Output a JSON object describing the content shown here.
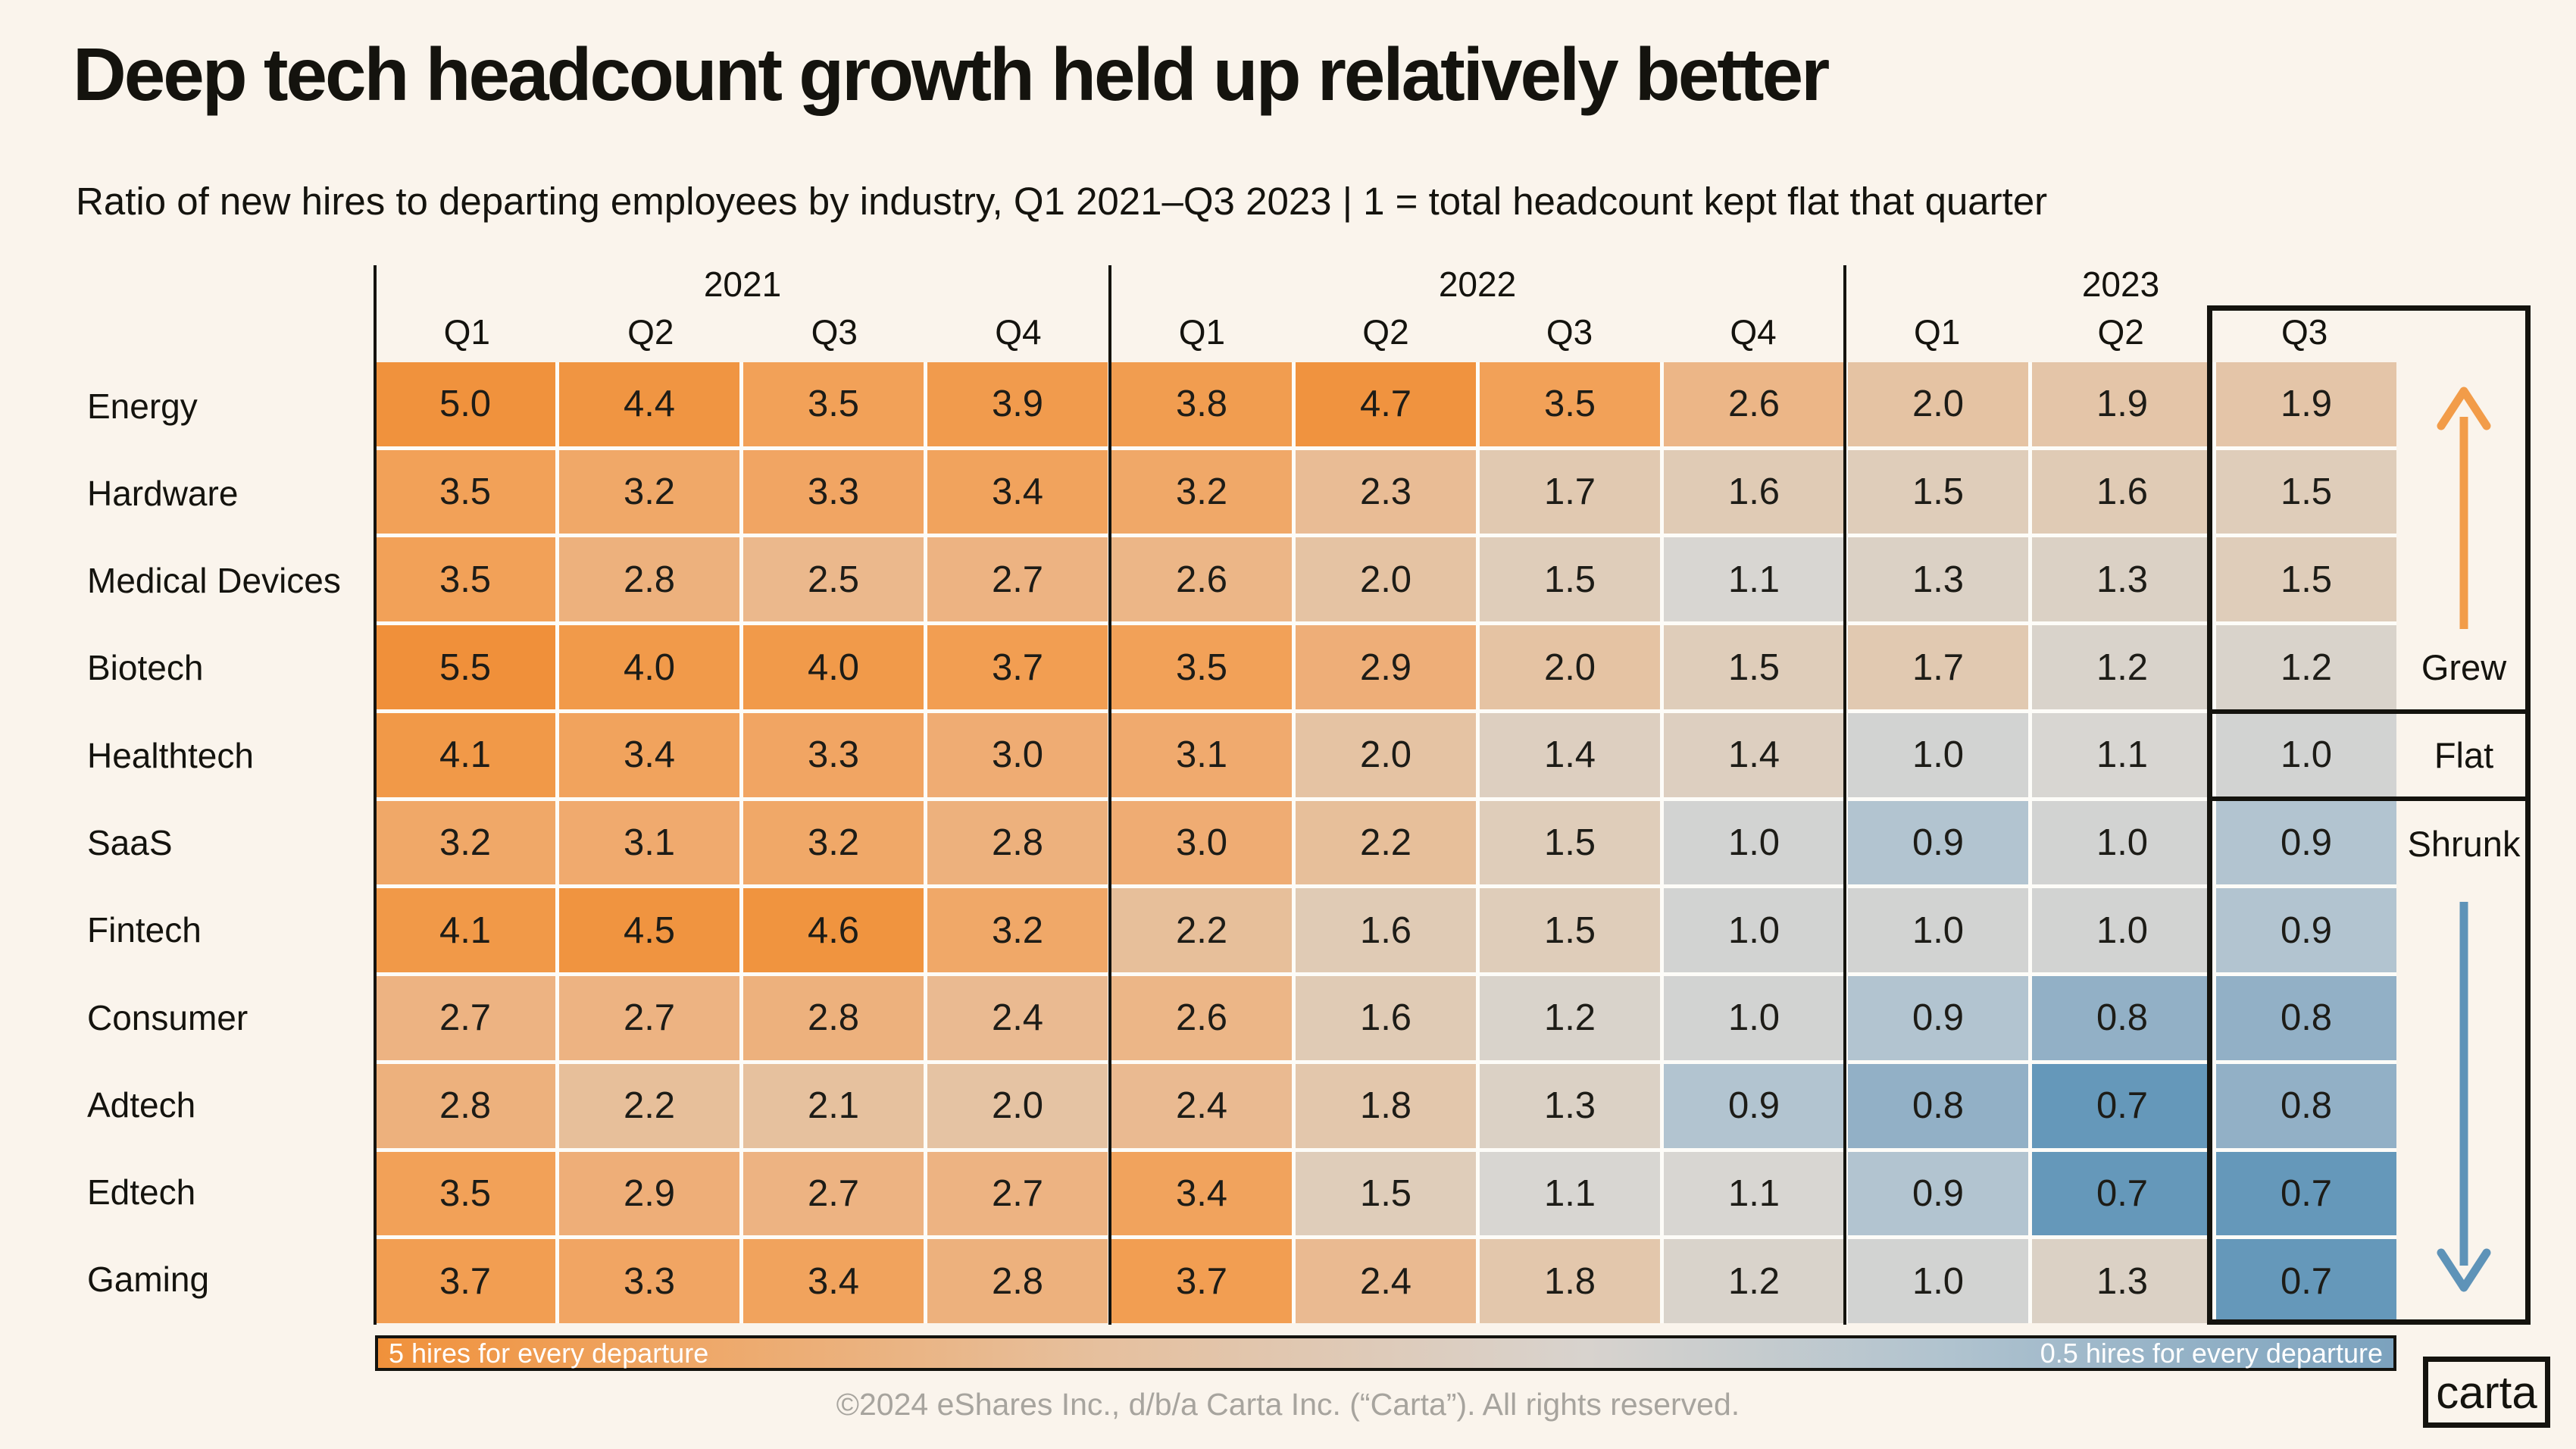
{
  "title": "Deep tech headcount growth held up relatively better",
  "subtitle": "Ratio of new hires to departing employees by industry, Q1 2021–Q3 2023 | 1 = total headcount kept flat that quarter",
  "chart_data": {
    "type": "heatmap",
    "title": "Deep tech headcount growth held up relatively better",
    "unit_note": "1 = total headcount kept flat that quarter",
    "year_groups": [
      {
        "label": "2021",
        "quarters": [
          "Q1",
          "Q2",
          "Q3",
          "Q4"
        ]
      },
      {
        "label": "2022",
        "quarters": [
          "Q1",
          "Q2",
          "Q3",
          "Q4"
        ]
      },
      {
        "label": "2023",
        "quarters": [
          "Q1",
          "Q2",
          "Q3"
        ]
      }
    ],
    "columns": [
      "2021-Q1",
      "2021-Q2",
      "2021-Q3",
      "2021-Q4",
      "2022-Q1",
      "2022-Q2",
      "2022-Q3",
      "2022-Q4",
      "2023-Q1",
      "2023-Q2",
      "2023-Q3"
    ],
    "rows": [
      {
        "industry": "Energy",
        "values": [
          5.0,
          4.4,
          3.5,
          3.9,
          3.8,
          4.7,
          3.5,
          2.6,
          2.0,
          1.9,
          1.9
        ]
      },
      {
        "industry": "Hardware",
        "values": [
          3.5,
          3.2,
          3.3,
          3.4,
          3.2,
          2.3,
          1.7,
          1.6,
          1.5,
          1.6,
          1.5
        ]
      },
      {
        "industry": "Medical Devices",
        "values": [
          3.5,
          2.8,
          2.5,
          2.7,
          2.6,
          2.0,
          1.5,
          1.1,
          1.3,
          1.3,
          1.5
        ]
      },
      {
        "industry": "Biotech",
        "values": [
          5.5,
          4.0,
          4.0,
          3.7,
          3.5,
          2.9,
          2.0,
          1.5,
          1.7,
          1.2,
          1.2
        ]
      },
      {
        "industry": "Healthtech",
        "values": [
          4.1,
          3.4,
          3.3,
          3.0,
          3.1,
          2.0,
          1.4,
          1.4,
          1.0,
          1.1,
          1.0
        ]
      },
      {
        "industry": "SaaS",
        "values": [
          3.2,
          3.1,
          3.2,
          2.8,
          3.0,
          2.2,
          1.5,
          1.0,
          0.9,
          1.0,
          0.9
        ]
      },
      {
        "industry": "Fintech",
        "values": [
          4.1,
          4.5,
          4.6,
          3.2,
          2.2,
          1.6,
          1.5,
          1.0,
          1.0,
          1.0,
          0.9
        ]
      },
      {
        "industry": "Consumer",
        "values": [
          2.7,
          2.7,
          2.8,
          2.4,
          2.6,
          1.6,
          1.2,
          1.0,
          0.9,
          0.8,
          0.8
        ]
      },
      {
        "industry": "Adtech",
        "values": [
          2.8,
          2.2,
          2.1,
          2.0,
          2.4,
          1.8,
          1.3,
          0.9,
          0.8,
          0.7,
          0.8
        ]
      },
      {
        "industry": "Edtech",
        "values": [
          3.5,
          2.9,
          2.7,
          2.7,
          3.4,
          1.5,
          1.1,
          1.1,
          0.9,
          0.7,
          0.7
        ]
      },
      {
        "industry": "Gaming",
        "values": [
          3.7,
          3.3,
          3.4,
          2.8,
          3.7,
          2.4,
          1.8,
          1.2,
          1.0,
          1.3,
          0.7
        ]
      }
    ],
    "highlighted_column": "2023-Q3",
    "sections": [
      {
        "label": "Grew",
        "rows": [
          "Energy",
          "Hardware",
          "Medical Devices",
          "Biotech"
        ],
        "arrow": "up",
        "arrow_color": "#F29C49"
      },
      {
        "label": "Flat",
        "rows": [
          "Healthtech"
        ]
      },
      {
        "label": "Shrunk",
        "rows": [
          "SaaS",
          "Fintech",
          "Consumer",
          "Adtech",
          "Edtech",
          "Gaming"
        ],
        "arrow": "down",
        "arrow_color": "#5E93B8"
      }
    ],
    "legend": {
      "left_label": "5 hires for every departure",
      "right_label": "0.5 hires for every departure"
    },
    "color_scale": {
      "high_color": "#F0913B",
      "mid_color": "#D2D3D2",
      "low_color": "#6598BA",
      "anchors": [
        {
          "v": 0.5,
          "c": "#4C84AB"
        },
        {
          "v": 0.7,
          "c": "#6598BA"
        },
        {
          "v": 0.8,
          "c": "#92B0C6"
        },
        {
          "v": 0.9,
          "c": "#B2C4D0"
        },
        {
          "v": 1.0,
          "c": "#D2D3D2"
        },
        {
          "v": 1.1,
          "c": "#D8D6D2"
        },
        {
          "v": 1.2,
          "c": "#D9D3CB"
        },
        {
          "v": 1.5,
          "c": "#DFCDBA"
        },
        {
          "v": 2.0,
          "c": "#E5C3A3"
        },
        {
          "v": 2.5,
          "c": "#EBB88C"
        },
        {
          "v": 3.0,
          "c": "#EFAC73"
        },
        {
          "v": 3.5,
          "c": "#F2A158"
        },
        {
          "v": 4.0,
          "c": "#F19A4A"
        },
        {
          "v": 4.5,
          "c": "#F09440"
        },
        {
          "v": 5.5,
          "c": "#F0903A"
        }
      ]
    }
  },
  "annotations": {
    "grew": "Grew",
    "flat": "Flat",
    "shrunk": "Shrunk"
  },
  "footer": {
    "copyright": "©2024 eShares Inc., d/b/a Carta Inc. (“Carta”). All rights reserved.",
    "logo_text": "carta"
  }
}
